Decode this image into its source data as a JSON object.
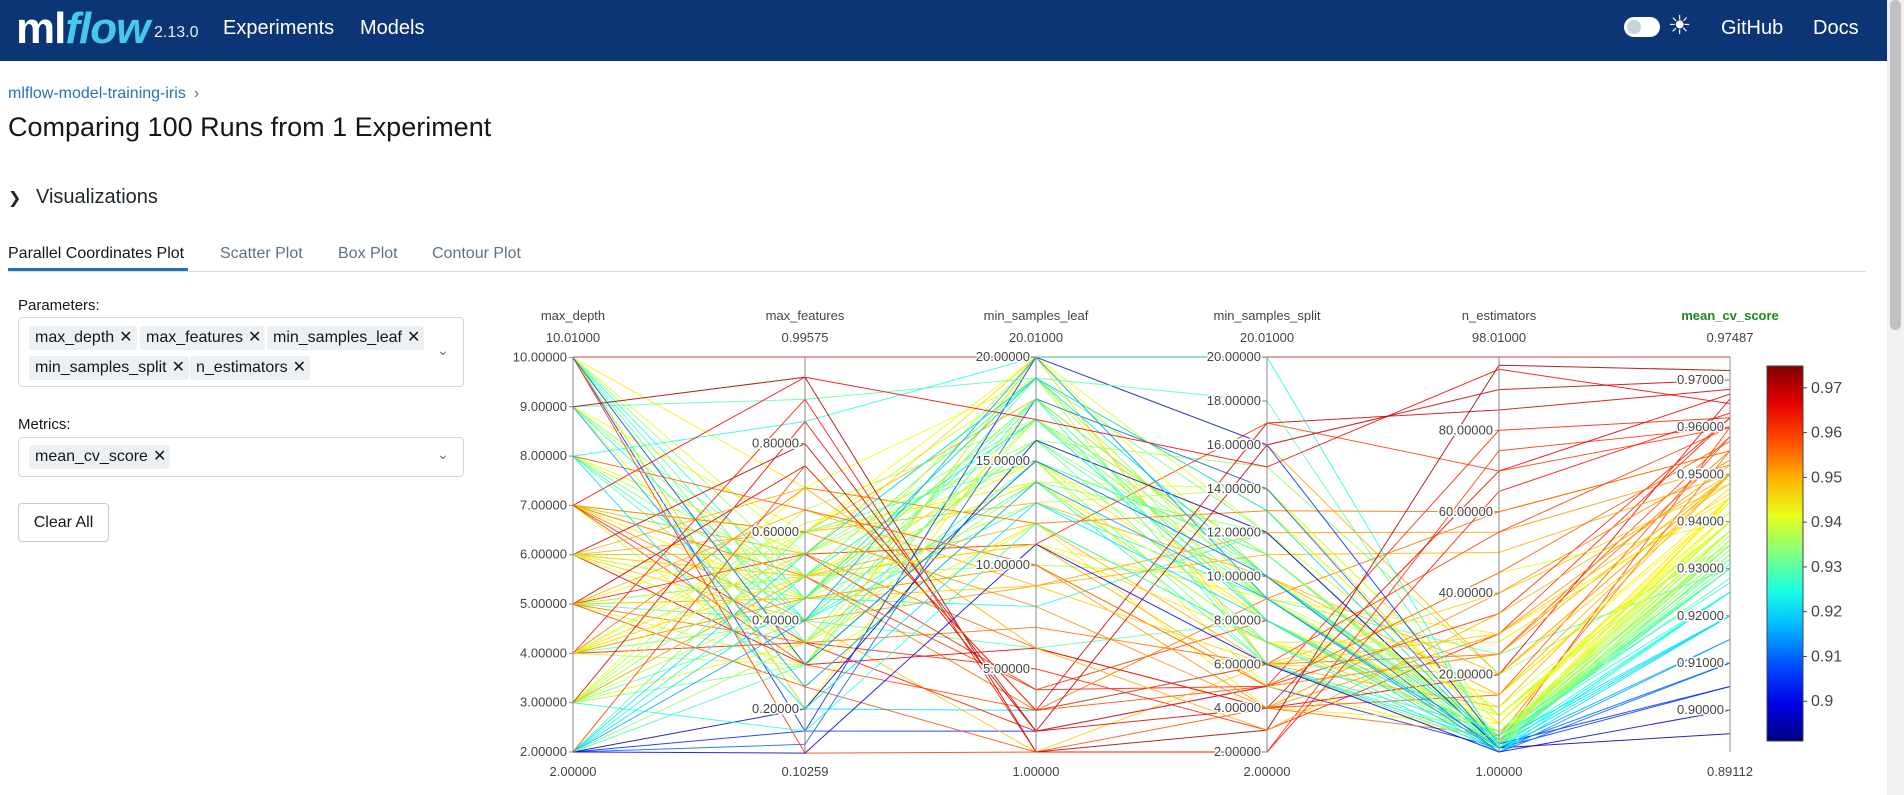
{
  "app": {
    "logo_ml": "ml",
    "logo_flow": "flow",
    "version": "2.13.0",
    "nav": [
      "Experiments",
      "Models"
    ],
    "right_links": [
      "GitHub",
      "Docs"
    ]
  },
  "breadcrumb": {
    "experiment": "mlflow-model-training-iris",
    "separator": "›"
  },
  "page_title": "Comparing 100 Runs from 1 Experiment",
  "visualizations": {
    "heading": "Visualizations",
    "tabs": [
      "Parallel Coordinates Plot",
      "Scatter Plot",
      "Box Plot",
      "Contour Plot"
    ],
    "active_tab": "Parallel Coordinates Plot"
  },
  "controls": {
    "parameters_label": "Parameters:",
    "parameters": [
      "max_depth",
      "max_features",
      "min_samples_leaf",
      "min_samples_split",
      "n_estimators"
    ],
    "metrics_label": "Metrics:",
    "metrics": [
      "mean_cv_score"
    ],
    "clear_all": "Clear All"
  },
  "chart_data": {
    "type": "parallel_coordinates",
    "axes": [
      {
        "name": "max_depth",
        "range": [
          2,
          10.01
        ],
        "top_label": "10.01000",
        "bottom_label": "2.00000",
        "ticks": [
          "10.00000",
          "9.00000",
          "8.00000",
          "7.00000",
          "6.00000",
          "5.00000",
          "4.00000",
          "3.00000",
          "2.00000"
        ]
      },
      {
        "name": "max_features",
        "range": [
          0.10259,
          0.99575
        ],
        "top_label": "0.99575",
        "bottom_label": "0.10259",
        "ticks": [
          "0.80000",
          "0.60000",
          "0.40000",
          "0.20000"
        ]
      },
      {
        "name": "min_samples_leaf",
        "range": [
          1,
          20.01
        ],
        "top_label": "20.01000",
        "bottom_label": "1.00000",
        "ticks": [
          "20.00000",
          "15.00000",
          "10.00000",
          "5.00000"
        ]
      },
      {
        "name": "min_samples_split",
        "range": [
          2,
          20.01
        ],
        "top_label": "20.01000",
        "bottom_label": "2.00000",
        "ticks": [
          "20.00000",
          "18.00000",
          "16.00000",
          "14.00000",
          "12.00000",
          "10.00000",
          "8.00000",
          "6.00000",
          "4.00000",
          "2.00000"
        ]
      },
      {
        "name": "n_estimators",
        "range": [
          1,
          98.01
        ],
        "top_label": "98.01000",
        "bottom_label": "1.00000",
        "ticks": [
          "80.00000",
          "60.00000",
          "40.00000",
          "20.00000"
        ]
      },
      {
        "name": "mean_cv_score",
        "range": [
          0.89112,
          0.97487
        ],
        "top_label": "0.97487",
        "bottom_label": "0.89112",
        "ticks": [
          "0.97000",
          "0.96000",
          "0.95000",
          "0.94000",
          "0.93000",
          "0.92000",
          "0.91000",
          "0.90000"
        ],
        "highlight": true
      }
    ],
    "colorbar": {
      "range": [
        0.89112,
        0.97487
      ],
      "ticks": [
        "0.97",
        "0.96",
        "0.95",
        "0.94",
        "0.93",
        "0.92",
        "0.91",
        "0.9"
      ],
      "colorscale": "jet"
    },
    "lines": [
      [
        10,
        0.15,
        2,
        5,
        2,
        0.905
      ],
      [
        10,
        0.2,
        3,
        6,
        3,
        0.92
      ],
      [
        10,
        0.4,
        6,
        8,
        5,
        0.93
      ],
      [
        10,
        0.45,
        8,
        12,
        2,
        0.925
      ],
      [
        10,
        0.5,
        10,
        10,
        3,
        0.935
      ],
      [
        10,
        0.2,
        18,
        14,
        4,
        0.945
      ],
      [
        10,
        0.3,
        20,
        16,
        20,
        0.95
      ],
      [
        10,
        0.35,
        19,
        9,
        25,
        0.93
      ],
      [
        10,
        0.55,
        15,
        5,
        45,
        0.94
      ],
      [
        10,
        0.7,
        12,
        4,
        8,
        0.945
      ],
      [
        9,
        0.5,
        17,
        8,
        2,
        0.933
      ],
      [
        9,
        0.4,
        13,
        9,
        3,
        0.925
      ],
      [
        9,
        0.3,
        20,
        12,
        10,
        0.94
      ],
      [
        9,
        0.6,
        14,
        7,
        15,
        0.944
      ],
      [
        9,
        0.45,
        16,
        15,
        20,
        0.935
      ],
      [
        8,
        0.45,
        17,
        10,
        5,
        0.932
      ],
      [
        8,
        0.5,
        19,
        8,
        2,
        0.938
      ],
      [
        8,
        0.35,
        15,
        11,
        4,
        0.93
      ],
      [
        8,
        0.55,
        11,
        9,
        30,
        0.945
      ],
      [
        8,
        0.4,
        14,
        6,
        6,
        0.927
      ],
      [
        7,
        0.6,
        13,
        10,
        20,
        0.95
      ],
      [
        7,
        0.55,
        6,
        4,
        5,
        0.955
      ],
      [
        7,
        0.5,
        4,
        8,
        3,
        0.96
      ],
      [
        7,
        0.3,
        3,
        5,
        25,
        0.958
      ],
      [
        7,
        0.4,
        9,
        12,
        55,
        0.952
      ],
      [
        7,
        0.25,
        14,
        7,
        10,
        0.94
      ],
      [
        7,
        0.55,
        17,
        9,
        2,
        0.935
      ],
      [
        7,
        0.45,
        19,
        13,
        8,
        0.945
      ],
      [
        7,
        0.5,
        12,
        6,
        12,
        0.95
      ],
      [
        7,
        0.35,
        5,
        3,
        30,
        0.962
      ],
      [
        6,
        0.5,
        3,
        9,
        60,
        0.955
      ],
      [
        6,
        0.4,
        1,
        6,
        40,
        0.948
      ],
      [
        6,
        0.55,
        11,
        17,
        70,
        0.96
      ],
      [
        6,
        0.6,
        18,
        10,
        15,
        0.95
      ],
      [
        6,
        0.45,
        10,
        5,
        4,
        0.942
      ],
      [
        6,
        0.3,
        6,
        4,
        20,
        0.966
      ],
      [
        6,
        0.5,
        15,
        8,
        3,
        0.945
      ],
      [
        6,
        0.35,
        17,
        11,
        5,
        0.94
      ],
      [
        6,
        0.45,
        13,
        14,
        10,
        0.938
      ],
      [
        6,
        0.55,
        19,
        6,
        2,
        0.936
      ],
      [
        5,
        0.4,
        16,
        9,
        3,
        0.93
      ],
      [
        5,
        0.3,
        12,
        7,
        6,
        0.94
      ],
      [
        5,
        0.5,
        14,
        12,
        2,
        0.934
      ],
      [
        5,
        0.45,
        18,
        8,
        5,
        0.937
      ],
      [
        5,
        0.6,
        20,
        10,
        10,
        0.942
      ],
      [
        5,
        0.35,
        7,
        6,
        25,
        0.955
      ],
      [
        5,
        0.55,
        4,
        5,
        35,
        0.962
      ],
      [
        5,
        0.25,
        1,
        4,
        15,
        0.958
      ],
      [
        5,
        0.65,
        9,
        11,
        50,
        0.95
      ],
      [
        5,
        0.5,
        17,
        9,
        4,
        0.936
      ],
      [
        4,
        0.45,
        18,
        10,
        2,
        0.933
      ],
      [
        4,
        0.4,
        16,
        7,
        3,
        0.931
      ],
      [
        4,
        0.6,
        19,
        9,
        12,
        0.94
      ],
      [
        4,
        0.35,
        2,
        5,
        80,
        0.962
      ],
      [
        4,
        0.7,
        12,
        13,
        60,
        0.955
      ],
      [
        4,
        0.5,
        14,
        8,
        8,
        0.944
      ],
      [
        4,
        0.3,
        17,
        11,
        5,
        0.938
      ],
      [
        4,
        0.55,
        20,
        6,
        20,
        0.947
      ],
      [
        4,
        0.45,
        10,
        4,
        30,
        0.952
      ],
      [
        4,
        0.62,
        15,
        9,
        4,
        0.94
      ],
      [
        3,
        0.5,
        19,
        12,
        2,
        0.932
      ],
      [
        3,
        0.55,
        16,
        10,
        5,
        0.935
      ],
      [
        3,
        0.4,
        18,
        8,
        3,
        0.93
      ],
      [
        3,
        0.6,
        14,
        14,
        10,
        0.94
      ],
      [
        3,
        0.45,
        20,
        9,
        6,
        0.938
      ],
      [
        3,
        0.35,
        12,
        7,
        15,
        0.945
      ],
      [
        3,
        0.65,
        17,
        11,
        4,
        0.936
      ],
      [
        3,
        0.3,
        15,
        6,
        2,
        0.933
      ],
      [
        3,
        0.7,
        19,
        13,
        8,
        0.942
      ],
      [
        3,
        0.5,
        11,
        5,
        25,
        0.95
      ],
      [
        2,
        0.12,
        18,
        14,
        2,
        0.91
      ],
      [
        2,
        0.15,
        20,
        16,
        3,
        0.905
      ],
      [
        2,
        0.2,
        16,
        12,
        2,
        0.895
      ],
      [
        2,
        0.45,
        19,
        10,
        4,
        0.92
      ],
      [
        2,
        0.5,
        17,
        8,
        5,
        0.925
      ],
      [
        2,
        0.4,
        20,
        9,
        2,
        0.915
      ],
      [
        2,
        0.6,
        15,
        11,
        3,
        0.93
      ],
      [
        2,
        0.35,
        14,
        7,
        6,
        0.935
      ],
      [
        2,
        0.55,
        19,
        13,
        2,
        0.92
      ],
      [
        2,
        0.3,
        18,
        6,
        4,
        0.928
      ],
      [
        8,
        0.85,
        20,
        20,
        2,
        0.925
      ],
      [
        9,
        0.9,
        19,
        18,
        3,
        0.93
      ],
      [
        7,
        0.95,
        17,
        15,
        95,
        0.965
      ],
      [
        6,
        0.8,
        2,
        16,
        90,
        0.97
      ],
      [
        5,
        0.75,
        3,
        17,
        85,
        0.968
      ],
      [
        10,
        0.1,
        1,
        2,
        75,
        0.96
      ],
      [
        9,
        0.95,
        1,
        3,
        96,
        0.972
      ],
      [
        3,
        0.85,
        2,
        4,
        70,
        0.967
      ],
      [
        4,
        0.9,
        1,
        2,
        65,
        0.963
      ],
      [
        2,
        0.75,
        3,
        6,
        55,
        0.96
      ],
      [
        8,
        0.65,
        10,
        5,
        45,
        0.957
      ],
      [
        7,
        0.6,
        8,
        4,
        40,
        0.953
      ],
      [
        6,
        0.7,
        6,
        3,
        35,
        0.95
      ],
      [
        5,
        0.45,
        9,
        6,
        30,
        0.948
      ],
      [
        4,
        0.5,
        11,
        7,
        28,
        0.946
      ],
      [
        10,
        0.3,
        15,
        10,
        1,
        0.91
      ],
      [
        9,
        0.25,
        14,
        9,
        1,
        0.915
      ],
      [
        8,
        0.2,
        13,
        8,
        1,
        0.92
      ],
      [
        3,
        0.15,
        12,
        7,
        1,
        0.925
      ],
      [
        2,
        0.1,
        11,
        6,
        1,
        0.9
      ]
    ]
  }
}
